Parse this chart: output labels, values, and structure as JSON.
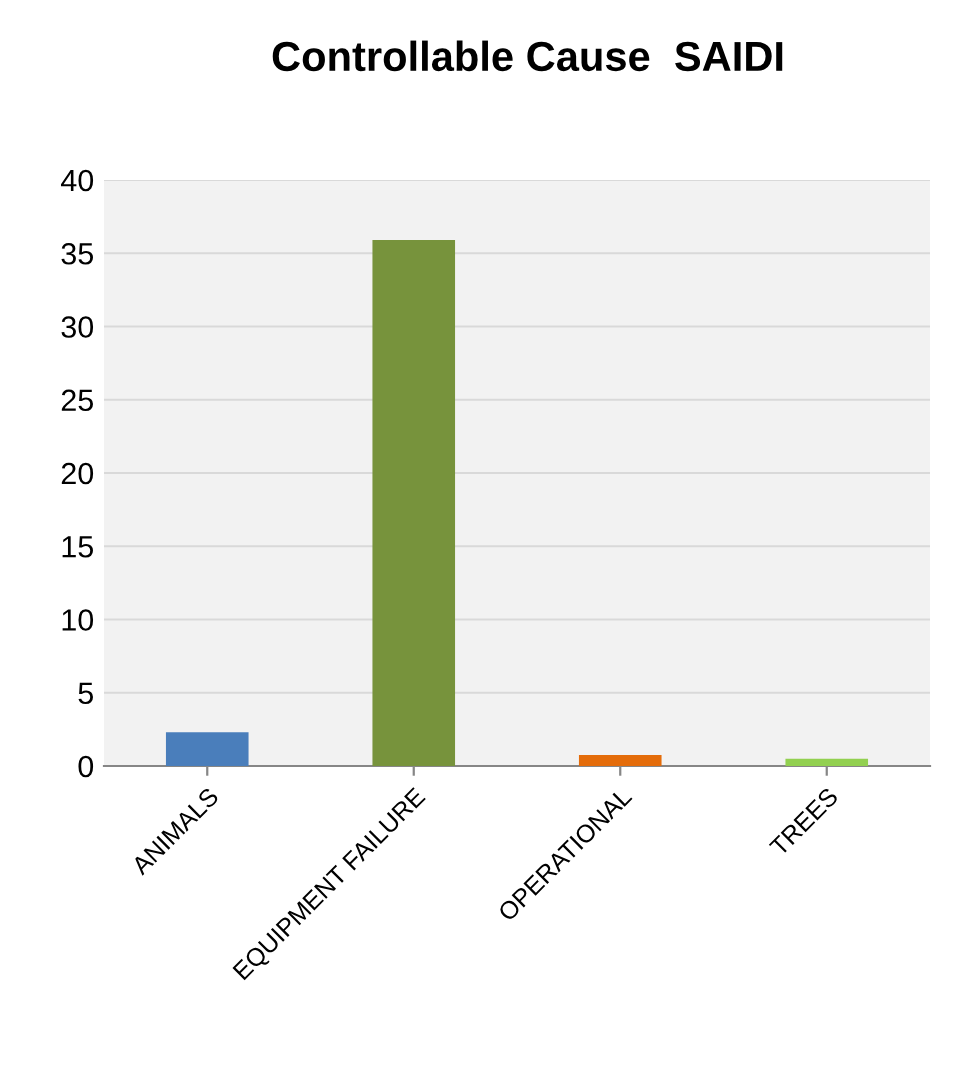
{
  "chart_data": {
    "type": "bar",
    "title": "Controllable Cause  SAIDI",
    "categories": [
      "ANIMALS",
      "EQUIPMENT FAILURE",
      "OPERATIONAL",
      "TREES"
    ],
    "values": [
      2.3,
      35.9,
      0.75,
      0.5
    ],
    "colors": [
      "#4a7ebb",
      "#77933c",
      "#e46c0a",
      "#92d050"
    ],
    "ylim": [
      0,
      40
    ],
    "yticks": [
      0,
      5,
      10,
      15,
      20,
      25,
      30,
      35,
      40
    ],
    "grid": "y"
  }
}
